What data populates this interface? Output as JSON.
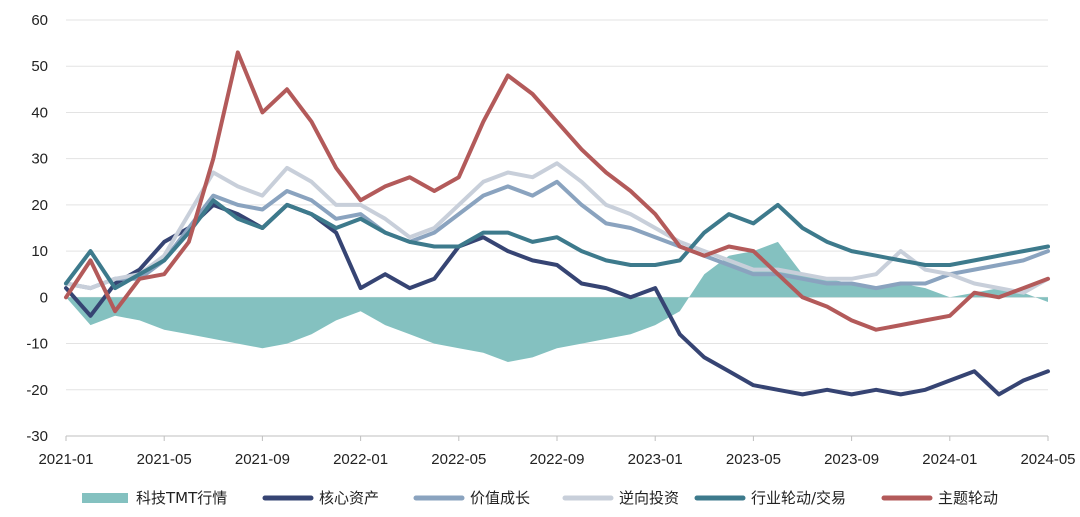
{
  "chart_data": {
    "type": "line",
    "ylim": [
      -30,
      60
    ],
    "y_ticks": [
      60,
      50,
      40,
      30,
      20,
      10,
      0,
      -10,
      -20,
      -30
    ],
    "x_ticks": [
      "2021-01",
      "2021-05",
      "2021-09",
      "2022-01",
      "2022-05",
      "2022-09",
      "2023-01",
      "2023-05",
      "2023-09",
      "2024-01",
      "2024-05"
    ],
    "grid": "horizontal",
    "legend_position": "bottom",
    "colors": {
      "科技TMT行情": "#84c1c0",
      "核心资产": "#364473",
      "价值成长": "#8aa3bf",
      "逆向投资": "#c8cfda",
      "行业轮动/交易": "#3d7a8c",
      "主题轮动": "#b35a5a"
    },
    "area_series": {
      "name": "科技TMT行情",
      "points": [
        [
          "2021-01",
          0
        ],
        [
          "2021-02",
          -6
        ],
        [
          "2021-03",
          -4
        ],
        [
          "2021-04",
          -5
        ],
        [
          "2021-05",
          -7
        ],
        [
          "2021-06",
          -8
        ],
        [
          "2021-07",
          -9
        ],
        [
          "2021-08",
          -10
        ],
        [
          "2021-09",
          -11
        ],
        [
          "2021-10",
          -10
        ],
        [
          "2021-11",
          -8
        ],
        [
          "2021-12",
          -5
        ],
        [
          "2022-01",
          -3
        ],
        [
          "2022-02",
          -6
        ],
        [
          "2022-03",
          -8
        ],
        [
          "2022-04",
          -10
        ],
        [
          "2022-05",
          -11
        ],
        [
          "2022-06",
          -12
        ],
        [
          "2022-07",
          -14
        ],
        [
          "2022-08",
          -13
        ],
        [
          "2022-09",
          -11
        ],
        [
          "2022-10",
          -10
        ],
        [
          "2022-11",
          -9
        ],
        [
          "2022-12",
          -8
        ],
        [
          "2023-01",
          -6
        ],
        [
          "2023-02",
          -3
        ],
        [
          "2023-03",
          5
        ],
        [
          "2023-04",
          9
        ],
        [
          "2023-05",
          10
        ],
        [
          "2023-06",
          12
        ],
        [
          "2023-07",
          5
        ],
        [
          "2023-08",
          4
        ],
        [
          "2023-09",
          3
        ],
        [
          "2023-10",
          2
        ],
        [
          "2023-11",
          3
        ],
        [
          "2023-12",
          2
        ],
        [
          "2024-01",
          0
        ],
        [
          "2024-02",
          1
        ],
        [
          "2024-03",
          2
        ],
        [
          "2024-04",
          1
        ],
        [
          "2024-05",
          -1
        ]
      ]
    },
    "series": [
      {
        "name": "核心资产",
        "points": [
          [
            "2021-01",
            2
          ],
          [
            "2021-02",
            -4
          ],
          [
            "2021-03",
            3
          ],
          [
            "2021-04",
            6
          ],
          [
            "2021-05",
            12
          ],
          [
            "2021-06",
            15
          ],
          [
            "2021-07",
            20
          ],
          [
            "2021-08",
            18
          ],
          [
            "2021-09",
            15
          ],
          [
            "2021-10",
            20
          ],
          [
            "2021-11",
            18
          ],
          [
            "2021-12",
            14
          ],
          [
            "2022-01",
            2
          ],
          [
            "2022-02",
            5
          ],
          [
            "2022-03",
            2
          ],
          [
            "2022-04",
            4
          ],
          [
            "2022-05",
            11
          ],
          [
            "2022-06",
            13
          ],
          [
            "2022-07",
            10
          ],
          [
            "2022-08",
            8
          ],
          [
            "2022-09",
            7
          ],
          [
            "2022-10",
            3
          ],
          [
            "2022-11",
            2
          ],
          [
            "2022-12",
            0
          ],
          [
            "2023-01",
            2
          ],
          [
            "2023-02",
            -8
          ],
          [
            "2023-03",
            -13
          ],
          [
            "2023-04",
            -16
          ],
          [
            "2023-05",
            -19
          ],
          [
            "2023-06",
            -20
          ],
          [
            "2023-07",
            -21
          ],
          [
            "2023-08",
            -20
          ],
          [
            "2023-09",
            -21
          ],
          [
            "2023-10",
            -20
          ],
          [
            "2023-11",
            -21
          ],
          [
            "2023-12",
            -20
          ],
          [
            "2024-01",
            -18
          ],
          [
            "2024-02",
            -16
          ],
          [
            "2024-03",
            -21
          ],
          [
            "2024-04",
            -18
          ],
          [
            "2024-05",
            -16
          ]
        ]
      },
      {
        "name": "价值成长",
        "points": [
          [
            "2021-01",
            3
          ],
          [
            "2021-02",
            2
          ],
          [
            "2021-03",
            4
          ],
          [
            "2021-04",
            4
          ],
          [
            "2021-05",
            8
          ],
          [
            "2021-06",
            15
          ],
          [
            "2021-07",
            22
          ],
          [
            "2021-08",
            20
          ],
          [
            "2021-09",
            19
          ],
          [
            "2021-10",
            23
          ],
          [
            "2021-11",
            21
          ],
          [
            "2021-12",
            17
          ],
          [
            "2022-01",
            18
          ],
          [
            "2022-02",
            14
          ],
          [
            "2022-03",
            12
          ],
          [
            "2022-04",
            14
          ],
          [
            "2022-05",
            18
          ],
          [
            "2022-06",
            22
          ],
          [
            "2022-07",
            24
          ],
          [
            "2022-08",
            22
          ],
          [
            "2022-09",
            25
          ],
          [
            "2022-10",
            20
          ],
          [
            "2022-11",
            16
          ],
          [
            "2022-12",
            15
          ],
          [
            "2023-01",
            13
          ],
          [
            "2023-02",
            11
          ],
          [
            "2023-03",
            9
          ],
          [
            "2023-04",
            7
          ],
          [
            "2023-05",
            5
          ],
          [
            "2023-06",
            5
          ],
          [
            "2023-07",
            4
          ],
          [
            "2023-08",
            3
          ],
          [
            "2023-09",
            3
          ],
          [
            "2023-10",
            2
          ],
          [
            "2023-11",
            3
          ],
          [
            "2023-12",
            3
          ],
          [
            "2024-01",
            5
          ],
          [
            "2024-02",
            6
          ],
          [
            "2024-03",
            7
          ],
          [
            "2024-04",
            8
          ],
          [
            "2024-05",
            10
          ]
        ]
      },
      {
        "name": "逆向投资",
        "points": [
          [
            "2021-01",
            3
          ],
          [
            "2021-02",
            2
          ],
          [
            "2021-03",
            4
          ],
          [
            "2021-04",
            5
          ],
          [
            "2021-05",
            9
          ],
          [
            "2021-06",
            18
          ],
          [
            "2021-07",
            27
          ],
          [
            "2021-08",
            24
          ],
          [
            "2021-09",
            22
          ],
          [
            "2021-10",
            28
          ],
          [
            "2021-11",
            25
          ],
          [
            "2021-12",
            20
          ],
          [
            "2022-01",
            20
          ],
          [
            "2022-02",
            17
          ],
          [
            "2022-03",
            13
          ],
          [
            "2022-04",
            15
          ],
          [
            "2022-05",
            20
          ],
          [
            "2022-06",
            25
          ],
          [
            "2022-07",
            27
          ],
          [
            "2022-08",
            26
          ],
          [
            "2022-09",
            29
          ],
          [
            "2022-10",
            25
          ],
          [
            "2022-11",
            20
          ],
          [
            "2022-12",
            18
          ],
          [
            "2023-01",
            15
          ],
          [
            "2023-02",
            12
          ],
          [
            "2023-03",
            10
          ],
          [
            "2023-04",
            8
          ],
          [
            "2023-05",
            6
          ],
          [
            "2023-06",
            6
          ],
          [
            "2023-07",
            5
          ],
          [
            "2023-08",
            4
          ],
          [
            "2023-09",
            4
          ],
          [
            "2023-10",
            5
          ],
          [
            "2023-11",
            10
          ],
          [
            "2023-12",
            6
          ],
          [
            "2024-01",
            5
          ],
          [
            "2024-02",
            3
          ],
          [
            "2024-03",
            2
          ],
          [
            "2024-04",
            1
          ],
          [
            "2024-05",
            4
          ]
        ]
      },
      {
        "name": "行业轮动/交易",
        "points": [
          [
            "2021-01",
            3
          ],
          [
            "2021-02",
            10
          ],
          [
            "2021-03",
            2
          ],
          [
            "2021-04",
            5
          ],
          [
            "2021-05",
            8
          ],
          [
            "2021-06",
            14
          ],
          [
            "2021-07",
            21
          ],
          [
            "2021-08",
            17
          ],
          [
            "2021-09",
            15
          ],
          [
            "2021-10",
            20
          ],
          [
            "2021-11",
            18
          ],
          [
            "2021-12",
            15
          ],
          [
            "2022-01",
            17
          ],
          [
            "2022-02",
            14
          ],
          [
            "2022-03",
            12
          ],
          [
            "2022-04",
            11
          ],
          [
            "2022-05",
            11
          ],
          [
            "2022-06",
            14
          ],
          [
            "2022-07",
            14
          ],
          [
            "2022-08",
            12
          ],
          [
            "2022-09",
            13
          ],
          [
            "2022-10",
            10
          ],
          [
            "2022-11",
            8
          ],
          [
            "2022-12",
            7
          ],
          [
            "2023-01",
            7
          ],
          [
            "2023-02",
            8
          ],
          [
            "2023-03",
            14
          ],
          [
            "2023-04",
            18
          ],
          [
            "2023-05",
            16
          ],
          [
            "2023-06",
            20
          ],
          [
            "2023-07",
            15
          ],
          [
            "2023-08",
            12
          ],
          [
            "2023-09",
            10
          ],
          [
            "2023-10",
            9
          ],
          [
            "2023-11",
            8
          ],
          [
            "2023-12",
            7
          ],
          [
            "2024-01",
            7
          ],
          [
            "2024-02",
            8
          ],
          [
            "2024-03",
            9
          ],
          [
            "2024-04",
            10
          ],
          [
            "2024-05",
            11
          ]
        ]
      },
      {
        "name": "主题轮动",
        "points": [
          [
            "2021-01",
            0
          ],
          [
            "2021-02",
            8
          ],
          [
            "2021-03",
            -3
          ],
          [
            "2021-04",
            4
          ],
          [
            "2021-05",
            5
          ],
          [
            "2021-06",
            12
          ],
          [
            "2021-07",
            30
          ],
          [
            "2021-08",
            53
          ],
          [
            "2021-09",
            40
          ],
          [
            "2021-10",
            45
          ],
          [
            "2021-11",
            38
          ],
          [
            "2021-12",
            28
          ],
          [
            "2022-01",
            21
          ],
          [
            "2022-02",
            24
          ],
          [
            "2022-03",
            26
          ],
          [
            "2022-04",
            23
          ],
          [
            "2022-05",
            26
          ],
          [
            "2022-06",
            38
          ],
          [
            "2022-07",
            48
          ],
          [
            "2022-08",
            44
          ],
          [
            "2022-09",
            38
          ],
          [
            "2022-10",
            32
          ],
          [
            "2022-11",
            27
          ],
          [
            "2022-12",
            23
          ],
          [
            "2023-01",
            18
          ],
          [
            "2023-02",
            11
          ],
          [
            "2023-03",
            9
          ],
          [
            "2023-04",
            11
          ],
          [
            "2023-05",
            10
          ],
          [
            "2023-06",
            5
          ],
          [
            "2023-07",
            0
          ],
          [
            "2023-08",
            -2
          ],
          [
            "2023-09",
            -5
          ],
          [
            "2023-10",
            -7
          ],
          [
            "2023-11",
            -6
          ],
          [
            "2023-12",
            -5
          ],
          [
            "2024-01",
            -4
          ],
          [
            "2024-02",
            1
          ],
          [
            "2024-03",
            0
          ],
          [
            "2024-04",
            2
          ],
          [
            "2024-05",
            4
          ]
        ]
      }
    ]
  }
}
